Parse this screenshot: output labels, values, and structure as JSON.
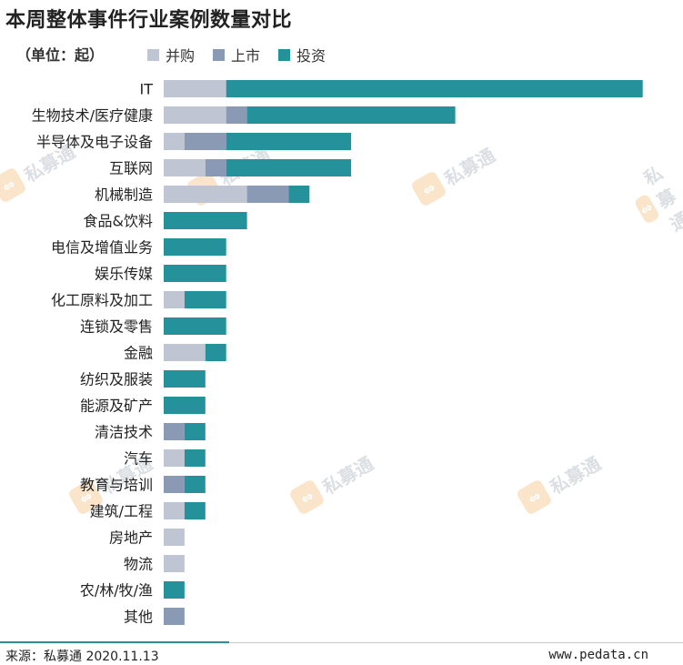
{
  "title": "本周整体事件行业案例数量对比",
  "unit_label": "（单位：起）",
  "colors": {
    "merger": "#bfc5d2",
    "ipo": "#8a9ab5",
    "investment": "#25919a",
    "accent": "#2a8f97"
  },
  "footer": {
    "source": "来源：私募通 2020.11.13",
    "site": "www.pedata.cn"
  },
  "watermark": {
    "text": "私募通",
    "logo": "logo-icon"
  },
  "chart_data": {
    "type": "bar",
    "orientation": "horizontal",
    "stacked": true,
    "categories": [
      "IT",
      "生物技术/医疗健康",
      "半导体及电子设备",
      "互联网",
      "机械制造",
      "食品&饮料",
      "电信及增值业务",
      "娱乐传媒",
      "化工原料及加工",
      "连锁及零售",
      "金融",
      "纺织及服装",
      "能源及矿产",
      "清洁技术",
      "汽车",
      "教育与培训",
      "建筑/工程",
      "房地产",
      "物流",
      "农/林/牧/渔",
      "其他"
    ],
    "series": [
      {
        "name": "并购",
        "values": [
          3,
          3,
          1,
          2,
          4,
          0,
          0,
          0,
          1,
          0,
          2,
          0,
          0,
          0,
          1,
          0,
          1,
          1,
          1,
          0,
          0
        ]
      },
      {
        "name": "上市",
        "values": [
          0,
          1,
          2,
          1,
          2,
          0,
          0,
          0,
          0,
          0,
          0,
          0,
          0,
          1,
          0,
          1,
          0,
          0,
          0,
          0,
          1
        ]
      },
      {
        "name": "投资",
        "values": [
          20,
          10,
          6,
          6,
          1,
          4,
          3,
          3,
          2,
          3,
          1,
          2,
          2,
          1,
          1,
          1,
          1,
          0,
          0,
          1,
          0
        ]
      }
    ],
    "xlim": [
      0,
      23
    ],
    "grid": false,
    "legend": "top-left"
  }
}
